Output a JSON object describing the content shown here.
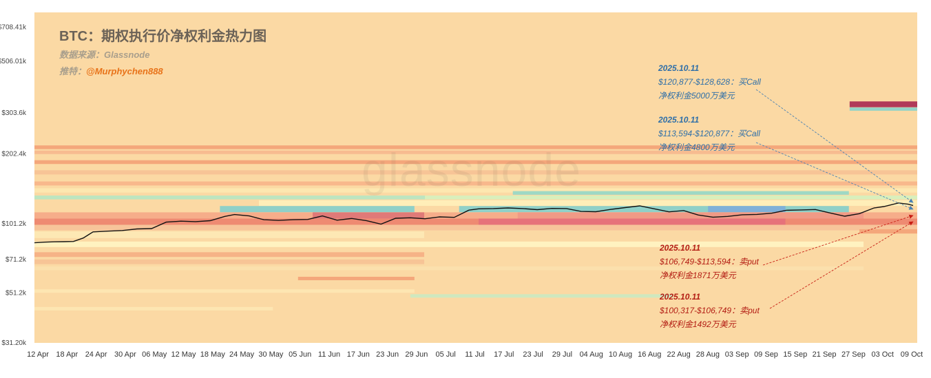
{
  "title": "BTC：期权执行价净权利金热力图",
  "source_label": "数据来源：Glassnode",
  "author_prefix": "推特：",
  "author_handle": "@Murphychen888",
  "watermark": "glassnode",
  "colors": {
    "background": "#fbd9a4",
    "price_line": "#111111",
    "call_arrow": "#4a82b4",
    "put_arrow": "#c81e14"
  },
  "annotations": [
    {
      "side": "call",
      "date": "2025.10.11",
      "range": "$120,877-$128,628：买Call",
      "premium": "净权利金5000万美元",
      "target_price": 125000
    },
    {
      "side": "call",
      "date": "2025.10.11",
      "range": "$113,594-$120,877：买Call",
      "premium": "净权利金4800万美元",
      "target_price": 117000
    },
    {
      "side": "put",
      "date": "2025.10.11",
      "range": "$106,749-$113,594：卖put",
      "premium": "净权利金1871万美元",
      "target_price": 110000
    },
    {
      "side": "put",
      "date": "2025.10.11",
      "range": "$100,317-$106,749：卖put",
      "premium": "净权利金1492万美元",
      "target_price": 103500
    }
  ],
  "chart_data": {
    "type": "heatmap",
    "title": "BTC：期权执行价净权利金热力图",
    "y_scale": "log",
    "ylim": [
      31200,
      820000
    ],
    "y_ticks": [
      {
        "label": "$31.20k",
        "value": 31200
      },
      {
        "label": "$51.2k",
        "value": 51200
      },
      {
        "label": "$71.2k",
        "value": 71200
      },
      {
        "label": "$101.2k",
        "value": 101200
      },
      {
        "label": "$202.4k",
        "value": 202400
      },
      {
        "label": "$303.6k",
        "value": 303600
      },
      {
        "label": "$506.01k",
        "value": 506010
      },
      {
        "label": "$708.41k",
        "value": 708410
      }
    ],
    "x_start": "2025-04-12",
    "x_end": "2025-10-09",
    "x_ticks": [
      "12 Apr",
      "18 Apr",
      "24 Apr",
      "30 Apr",
      "06 May",
      "12 May",
      "18 May",
      "24 May",
      "30 May",
      "05 Jun",
      "11 Jun",
      "17 Jun",
      "23 Jun",
      "29 Jun",
      "05 Jul",
      "11 Jul",
      "17 Jul",
      "23 Jul",
      "29 Jul",
      "04 Aug",
      "10 Aug",
      "16 Aug",
      "22 Aug",
      "28 Aug",
      "03 Sep",
      "09 Sep",
      "15 Sep",
      "21 Sep",
      "27 Sep",
      "03 Oct",
      "09 Oct"
    ],
    "bands": [
      {
        "from": "2025-04-12",
        "to": "2025-10-09",
        "lo": 212000,
        "hi": 220000,
        "color": "#f4a77b"
      },
      {
        "from": "2025-04-12",
        "to": "2025-10-09",
        "lo": 202000,
        "hi": 209000,
        "color": "#f7bb90"
      },
      {
        "from": "2025-04-12",
        "to": "2025-10-09",
        "lo": 183000,
        "hi": 190000,
        "color": "#f4a77b"
      },
      {
        "from": "2025-04-12",
        "to": "2025-10-09",
        "lo": 165000,
        "hi": 172000,
        "color": "#f7c496"
      },
      {
        "from": "2025-04-12",
        "to": "2025-10-09",
        "lo": 148000,
        "hi": 154000,
        "color": "#f8b88c"
      },
      {
        "from": "2025-04-12",
        "to": "2025-10-09",
        "lo": 138000,
        "hi": 144000,
        "color": "#fde7b0"
      },
      {
        "from": "2025-04-12",
        "to": "2025-07-01",
        "lo": 129000,
        "hi": 134000,
        "color": "#bde5c0"
      },
      {
        "from": "2025-07-01",
        "to": "2025-10-09",
        "lo": 129000,
        "hi": 134000,
        "color": "#d9efbc"
      },
      {
        "from": "2025-07-19",
        "to": "2025-09-25",
        "lo": 135000,
        "hi": 140000,
        "color": "#9fd8c4"
      },
      {
        "from": "2025-05-28",
        "to": "2025-10-09",
        "lo": 121000,
        "hi": 128000,
        "color": "#ffeeb8"
      },
      {
        "from": "2025-05-20",
        "to": "2025-06-28",
        "lo": 113600,
        "hi": 120800,
        "color": "#8fd0c8"
      },
      {
        "from": "2025-07-08",
        "to": "2025-09-25",
        "lo": 113600,
        "hi": 120800,
        "color": "#8fd0c8"
      },
      {
        "from": "2025-08-28",
        "to": "2025-09-12",
        "lo": 113600,
        "hi": 120800,
        "color": "#7fb0d8"
      },
      {
        "from": "2025-04-12",
        "to": "2025-10-09",
        "lo": 106700,
        "hi": 113500,
        "color": "#f6ad8a"
      },
      {
        "from": "2025-06-08",
        "to": "2025-06-30",
        "lo": 106700,
        "hi": 113500,
        "color": "#e07a78"
      },
      {
        "from": "2025-07-20",
        "to": "2025-09-28",
        "lo": 106700,
        "hi": 113500,
        "color": "#f09a86"
      },
      {
        "from": "2025-04-12",
        "to": "2025-10-09",
        "lo": 100300,
        "hi": 106700,
        "color": "#ee8a72"
      },
      {
        "from": "2025-07-12",
        "to": "2025-09-12",
        "lo": 100300,
        "hi": 106700,
        "color": "#e6727a"
      },
      {
        "from": "2025-04-12",
        "to": "2025-10-09",
        "lo": 95000,
        "hi": 100300,
        "color": "#f7c49a"
      },
      {
        "from": "2025-04-12",
        "to": "2025-06-30",
        "lo": 88000,
        "hi": 94000,
        "color": "#fde8b4"
      },
      {
        "from": "2025-04-12",
        "to": "2025-09-28",
        "lo": 80500,
        "hi": 85000,
        "color": "#fff2c0"
      },
      {
        "from": "2025-04-12",
        "to": "2025-06-30",
        "lo": 73000,
        "hi": 76500,
        "color": "#f6b387"
      },
      {
        "from": "2025-04-12",
        "to": "2025-06-30",
        "lo": 68000,
        "hi": 71200,
        "color": "#f7c496"
      },
      {
        "from": "2025-04-12",
        "to": "2025-09-28",
        "lo": 64000,
        "hi": 66500,
        "color": "#fbe0ad"
      },
      {
        "from": "2025-06-05",
        "to": "2025-06-28",
        "lo": 58000,
        "hi": 60000,
        "color": "#f4a77b"
      },
      {
        "from": "2025-04-12",
        "to": "2025-06-28",
        "lo": 51200,
        "hi": 53000,
        "color": "#fde6b2"
      },
      {
        "from": "2025-06-28",
        "to": "2025-08-20",
        "lo": 48800,
        "hi": 50500,
        "color": "#cfe8bf"
      },
      {
        "from": "2025-04-12",
        "to": "2025-05-30",
        "lo": 43000,
        "hi": 44500,
        "color": "#fde6b2"
      },
      {
        "from": "2025-09-26",
        "to": "2025-10-09",
        "lo": 321000,
        "hi": 340000,
        "color": "#b03a5a"
      },
      {
        "from": "2025-09-26",
        "to": "2025-10-09",
        "lo": 310000,
        "hi": 320000,
        "color": "#93d3c8"
      },
      {
        "from": "2025-09-28",
        "to": "2025-10-09",
        "lo": 92000,
        "hi": 96000,
        "color": "#f4a77b"
      }
    ],
    "price_series": {
      "name": "BTC",
      "x": [
        "2025-04-12",
        "2025-04-14",
        "2025-04-16",
        "2025-04-18",
        "2025-04-20",
        "2025-04-22",
        "2025-04-24",
        "2025-04-27",
        "2025-04-30",
        "2025-05-03",
        "2025-05-06",
        "2025-05-09",
        "2025-05-12",
        "2025-05-15",
        "2025-05-18",
        "2025-05-21",
        "2025-05-23",
        "2025-05-26",
        "2025-05-29",
        "2025-06-01",
        "2025-06-04",
        "2025-06-07",
        "2025-06-10",
        "2025-06-13",
        "2025-06-16",
        "2025-06-19",
        "2025-06-22",
        "2025-06-25",
        "2025-06-28",
        "2025-07-01",
        "2025-07-04",
        "2025-07-07",
        "2025-07-10",
        "2025-07-12",
        "2025-07-15",
        "2025-07-18",
        "2025-07-21",
        "2025-07-24",
        "2025-07-27",
        "2025-07-30",
        "2025-08-02",
        "2025-08-05",
        "2025-08-08",
        "2025-08-11",
        "2025-08-14",
        "2025-08-17",
        "2025-08-20",
        "2025-08-23",
        "2025-08-26",
        "2025-08-29",
        "2025-09-01",
        "2025-09-04",
        "2025-09-07",
        "2025-09-10",
        "2025-09-13",
        "2025-09-16",
        "2025-09-19",
        "2025-09-22",
        "2025-09-25",
        "2025-09-28",
        "2025-10-01",
        "2025-10-03",
        "2025-10-06",
        "2025-10-08",
        "2025-10-09"
      ],
      "y": [
        84000,
        84500,
        84800,
        84900,
        85100,
        88000,
        93500,
        94200,
        94800,
        96300,
        96600,
        103000,
        104000,
        103500,
        104500,
        109000,
        111000,
        109500,
        105500,
        104800,
        105500,
        105800,
        109500,
        105000,
        106800,
        104600,
        101000,
        107000,
        107500,
        106500,
        108500,
        108000,
        116000,
        117500,
        117800,
        118500,
        117800,
        116500,
        118000,
        117800,
        114500,
        114200,
        116800,
        118900,
        121000,
        117500,
        114000,
        115500,
        110500,
        108200,
        109000,
        110800,
        111200,
        112500,
        115800,
        116200,
        116700,
        112800,
        109200,
        112000,
        118500,
        120200,
        124500,
        123000,
        121500
      ]
    }
  }
}
